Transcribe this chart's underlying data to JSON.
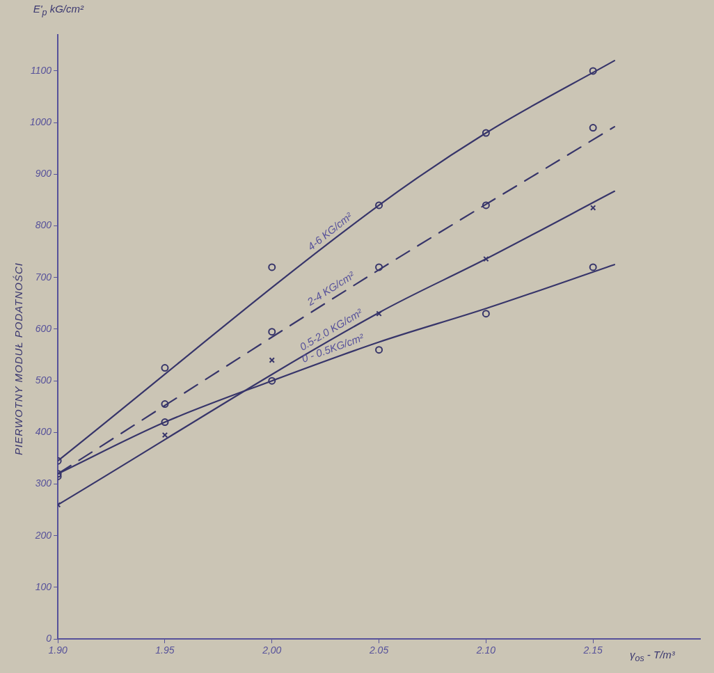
{
  "chart_data": {
    "type": "scatter",
    "ylabel": "PIERWOTNY MODUŁ PODATNOŚCI",
    "xlabel": "γ$_{os}$ - T/m³",
    "annotations": [
      "E'$_{p}$ kG/cm²"
    ],
    "xlim": [
      1.9,
      2.2
    ],
    "ylim": [
      0,
      1170
    ],
    "xticks": [
      {
        "value": 1.9,
        "label": "1.90"
      },
      {
        "value": 1.95,
        "label": "1.95"
      },
      {
        "value": 2.0,
        "label": "2,00"
      },
      {
        "value": 2.05,
        "label": "2.05"
      },
      {
        "value": 2.1,
        "label": "2.10"
      },
      {
        "value": 2.15,
        "label": "2.15"
      }
    ],
    "yticks": [
      0,
      100,
      200,
      300,
      400,
      500,
      600,
      700,
      800,
      900,
      1000,
      1100
    ],
    "grid": false,
    "legend": false,
    "series": [
      {
        "marker": "circle",
        "color": "#37356a",
        "x": [
          1.9,
          1.95,
          2.0,
          2.05,
          2.1,
          2.15
        ],
        "values": [
          345,
          525,
          720,
          840,
          980,
          1100
        ]
      },
      {
        "marker": "circle",
        "color": "#37356a",
        "x": [
          1.9,
          1.95,
          2.0,
          2.05,
          2.1,
          2.15
        ],
        "values": [
          320,
          455,
          595,
          720,
          840,
          990
        ]
      },
      {
        "marker": "cross",
        "color": "#37356a",
        "x": [
          1.9,
          1.95,
          2.0,
          2.05,
          2.1,
          2.15
        ],
        "values": [
          260,
          395,
          540,
          630,
          736,
          835
        ]
      },
      {
        "marker": "circle",
        "color": "#37356a",
        "x": [
          1.9,
          1.95,
          2.0,
          2.05,
          2.1,
          2.15
        ],
        "values": [
          315,
          420,
          500,
          560,
          630,
          720
        ]
      },
      {
        "type": "line",
        "name": "4-6 KG/cm²",
        "color": "#37356a",
        "line_style": "solid",
        "marker": "none",
        "x": [
          1.9,
          2.05,
          2.1,
          2.16
        ],
        "values": [
          345,
          840,
          980,
          1120
        ]
      },
      {
        "type": "line",
        "name": "2-4 KG/cm²",
        "color": "#37356a",
        "line_style": "dashed",
        "marker": "none",
        "x": [
          1.9,
          2.05,
          2.16
        ],
        "values": [
          320,
          715,
          992
        ]
      },
      {
        "type": "line",
        "name": "0.5-2.0 KG/cm²",
        "color": "#37356a",
        "line_style": "solid",
        "marker": "none",
        "x": [
          1.9,
          2.05,
          2.1,
          2.16
        ],
        "values": [
          260,
          632,
          736,
          867
        ]
      },
      {
        "type": "line",
        "name": "0 - 0.5KG/cm²",
        "color": "#37356a",
        "line_style": "solid",
        "marker": "none",
        "x": [
          1.9,
          1.95,
          2.0,
          2.05,
          2.1,
          2.16
        ],
        "values": [
          320,
          420,
          500,
          575,
          640,
          725
        ]
      }
    ]
  }
}
